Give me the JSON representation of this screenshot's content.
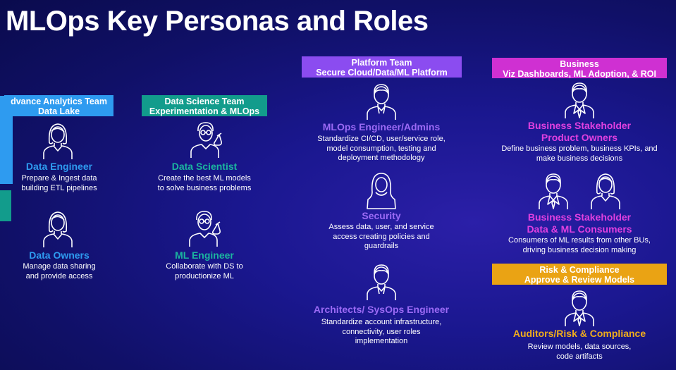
{
  "title": "MLOps Key Personas and Roles",
  "colors": {
    "analytics": "#2e9bf0",
    "datascience": "#129c8c",
    "platform": "#8b4cf0",
    "business": "#cf30d2",
    "compliance": "#eaa314"
  },
  "groups": {
    "analytics": {
      "line1": "dvance Analytics Team",
      "line2": "Data Lake"
    },
    "datascience": {
      "line1": "Data Science Team",
      "line2": "Experimentation & MLOps"
    },
    "platform": {
      "line1": "Platform Team",
      "line2": "Secure Cloud/Data/ML Platform"
    },
    "business": {
      "line1": "Business",
      "line2": "Viz Dashboards, ML Adoption, & ROI"
    },
    "compliance": {
      "line1": "Risk & Compliance",
      "line2": "Approve & Review Models"
    }
  },
  "roles": {
    "data_engineer": {
      "name": "Data Engineer",
      "desc": [
        "Prepare & Ingest data",
        "building ETL pipelines"
      ]
    },
    "data_owners": {
      "name": "Data Owners",
      "desc": [
        "Manage data sharing",
        "and provide access"
      ]
    },
    "data_scientist": {
      "name": "Data Scientist",
      "desc": [
        "Create the best ML models",
        "to solve business problems"
      ]
    },
    "ml_engineer": {
      "name": "ML Engineer",
      "desc": [
        "Collaborate with DS to",
        "productionize ML"
      ]
    },
    "mlops_engineer": {
      "name": "MLOps Engineer/Admins",
      "desc": [
        "Standardize CI/CD, user/service role,",
        "model consumption, testing and",
        "deployment methodology"
      ]
    },
    "security": {
      "name": "Security",
      "desc": [
        "Assess data, user, and service",
        "access creating policies and",
        "guardrails"
      ]
    },
    "architects": {
      "name": "Architects/ SysOps Engineer",
      "desc": [
        "Standardize account infrastructure,",
        "connectivity, user roles",
        "implementation"
      ]
    },
    "stakeholder_product": {
      "name": [
        "Business Stakeholder",
        "Product Owners"
      ],
      "desc": [
        "Define business problem, business KPIs, and",
        "make business decisions"
      ]
    },
    "stakeholder_consumers": {
      "name": [
        "Business Stakeholder",
        "Data & ML Consumers"
      ],
      "desc": [
        "Consumers of ML results from other BUs,",
        "driving business decision making"
      ]
    },
    "auditors": {
      "name": "Auditors/Risk & Compliance",
      "desc": [
        "Review models, data sources,",
        "code artifacts"
      ]
    }
  },
  "icons": [
    "person-female-icon",
    "person-scientist-icon",
    "person-male-icon",
    "person-hijab-icon",
    "person-suit-icon"
  ]
}
